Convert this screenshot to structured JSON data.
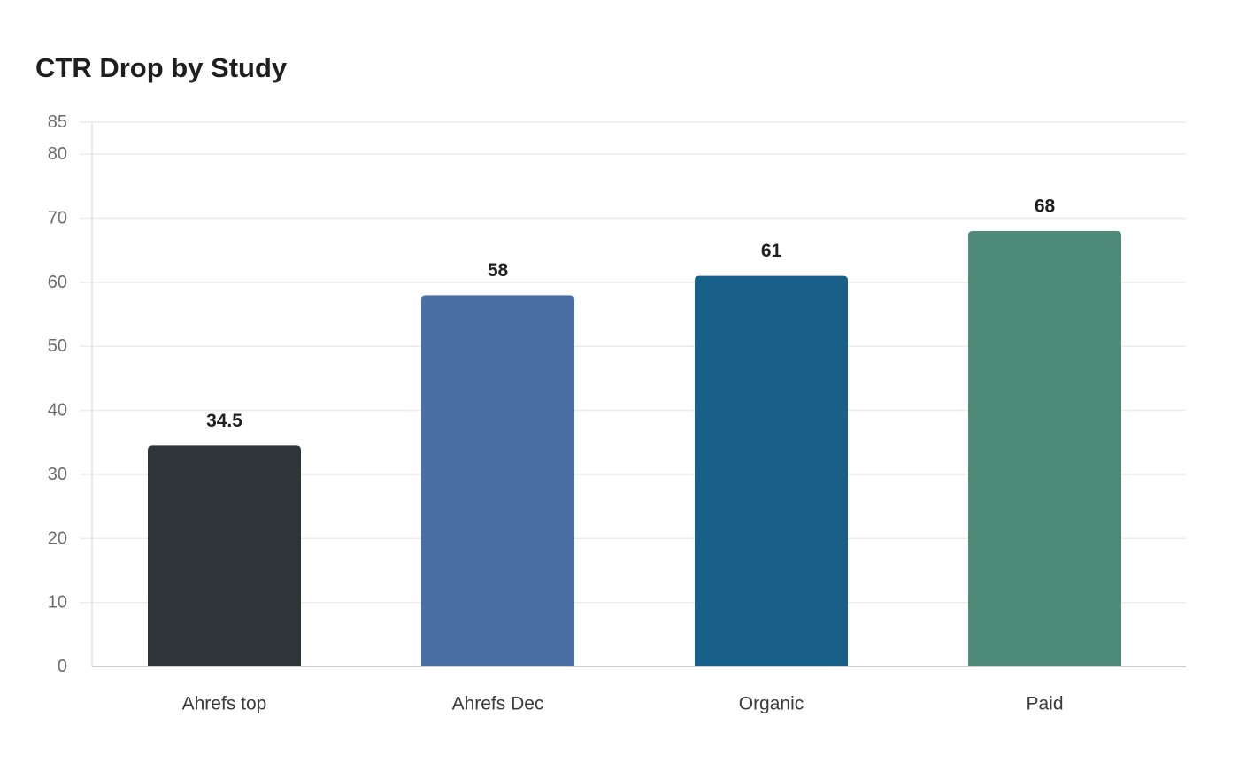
{
  "chart_data": {
    "type": "bar",
    "title": "CTR Drop by Study",
    "xlabel": "",
    "ylabel": "",
    "categories": [
      "Ahrefs top",
      "Ahrefs Dec",
      "Organic",
      "Paid"
    ],
    "values": [
      34.5,
      58,
      61,
      68
    ],
    "value_labels": [
      "34.5",
      "58",
      "61",
      "68"
    ],
    "colors": [
      "#2d3538",
      "#4a6fa5",
      "#186089",
      "#4e8b79"
    ],
    "ylim": [
      0,
      85
    ],
    "yticks": [
      0,
      10,
      20,
      30,
      40,
      50,
      60,
      70,
      80,
      85
    ],
    "grid": true,
    "legend": "none"
  }
}
